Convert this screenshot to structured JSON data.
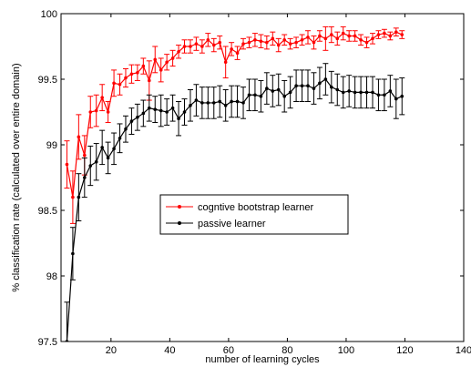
{
  "chart_data": {
    "type": "line",
    "xlabel": "number of learning cycles",
    "ylabel": "% classification rate  (calculated over entire domain)",
    "xlim": [
      3,
      140
    ],
    "ylim": [
      97.5,
      100
    ],
    "xticks": [
      "20",
      "40",
      "60",
      "80",
      "100",
      "120",
      "140"
    ],
    "xtick_values": [
      20,
      40,
      60,
      80,
      100,
      120,
      140
    ],
    "yticks": [
      "97.5",
      "98",
      "98.5",
      "99",
      "99.5",
      "100"
    ],
    "ytick_values": [
      97.5,
      98,
      98.5,
      99,
      99.5,
      100
    ],
    "grid": false,
    "legend_position": "center",
    "series": [
      {
        "name": "cogntive bootstrap learner",
        "color": "#ff0000",
        "x": [
          5,
          7,
          9,
          11,
          13,
          15,
          17,
          19,
          21,
          23,
          25,
          27,
          29,
          31,
          33,
          35,
          37,
          39,
          41,
          43,
          45,
          47,
          49,
          51,
          53,
          55,
          57,
          59,
          61,
          63,
          65,
          67,
          69,
          71,
          73,
          75,
          77,
          79,
          81,
          83,
          85,
          87,
          89,
          91,
          93,
          95,
          97,
          99,
          101,
          103,
          105,
          107,
          109,
          111,
          113,
          115,
          117,
          119
        ],
        "y": [
          98.85,
          98.6,
          99.06,
          98.92,
          99.25,
          99.26,
          99.36,
          99.25,
          99.47,
          99.46,
          99.51,
          99.54,
          99.55,
          99.6,
          99.49,
          99.65,
          99.57,
          99.63,
          99.66,
          99.71,
          99.75,
          99.75,
          99.77,
          99.75,
          99.8,
          99.76,
          99.78,
          99.63,
          99.73,
          99.7,
          99.77,
          99.78,
          99.8,
          99.79,
          99.78,
          99.81,
          99.76,
          99.8,
          99.77,
          99.78,
          99.8,
          99.82,
          99.78,
          99.83,
          99.81,
          99.84,
          99.81,
          99.85,
          99.83,
          99.83,
          99.8,
          99.78,
          99.81,
          99.84,
          99.85,
          99.83,
          99.86,
          99.84
        ],
        "err": [
          0.18,
          0.2,
          0.17,
          0.15,
          0.12,
          0.12,
          0.1,
          0.08,
          0.1,
          0.08,
          0.07,
          0.07,
          0.06,
          0.06,
          0.15,
          0.1,
          0.09,
          0.06,
          0.06,
          0.05,
          0.05,
          0.05,
          0.05,
          0.05,
          0.05,
          0.05,
          0.05,
          0.12,
          0.05,
          0.05,
          0.04,
          0.04,
          0.05,
          0.05,
          0.05,
          0.05,
          0.05,
          0.04,
          0.04,
          0.04,
          0.04,
          0.05,
          0.05,
          0.04,
          0.09,
          0.06,
          0.05,
          0.05,
          0.04,
          0.04,
          0.04,
          0.04,
          0.04,
          0.03,
          0.03,
          0.03,
          0.03,
          0.03
        ]
      },
      {
        "name": "passive learner",
        "color": "#000000",
        "x": [
          5,
          7,
          9,
          11,
          13,
          15,
          17,
          19,
          21,
          23,
          25,
          27,
          29,
          31,
          33,
          35,
          37,
          39,
          41,
          43,
          45,
          47,
          49,
          51,
          53,
          55,
          57,
          59,
          61,
          63,
          65,
          67,
          69,
          71,
          73,
          75,
          77,
          79,
          81,
          83,
          85,
          87,
          89,
          91,
          93,
          95,
          97,
          99,
          101,
          103,
          105,
          107,
          109,
          111,
          113,
          115,
          117,
          119
        ],
        "y": [
          97.5,
          98.17,
          98.6,
          98.75,
          98.84,
          98.87,
          98.98,
          98.9,
          98.97,
          99.05,
          99.12,
          99.18,
          99.21,
          99.24,
          99.28,
          99.27,
          99.26,
          99.25,
          99.28,
          99.2,
          99.25,
          99.3,
          99.34,
          99.32,
          99.32,
          99.32,
          99.33,
          99.3,
          99.33,
          99.33,
          99.32,
          99.38,
          99.38,
          99.37,
          99.43,
          99.41,
          99.42,
          99.37,
          99.4,
          99.45,
          99.45,
          99.45,
          99.43,
          99.47,
          99.5,
          99.44,
          99.42,
          99.4,
          99.41,
          99.4,
          99.4,
          99.4,
          99.4,
          99.38,
          99.38,
          99.41,
          99.35,
          99.37
        ],
        "err": [
          0.3,
          0.2,
          0.18,
          0.15,
          0.15,
          0.14,
          0.13,
          0.12,
          0.12,
          0.11,
          0.1,
          0.1,
          0.1,
          0.1,
          0.1,
          0.1,
          0.12,
          0.1,
          0.1,
          0.13,
          0.1,
          0.12,
          0.12,
          0.12,
          0.12,
          0.12,
          0.12,
          0.12,
          0.12,
          0.12,
          0.12,
          0.12,
          0.12,
          0.12,
          0.12,
          0.12,
          0.12,
          0.12,
          0.12,
          0.12,
          0.12,
          0.12,
          0.12,
          0.12,
          0.12,
          0.12,
          0.12,
          0.12,
          0.12,
          0.12,
          0.12,
          0.12,
          0.12,
          0.12,
          0.12,
          0.12,
          0.15,
          0.14
        ]
      }
    ]
  }
}
